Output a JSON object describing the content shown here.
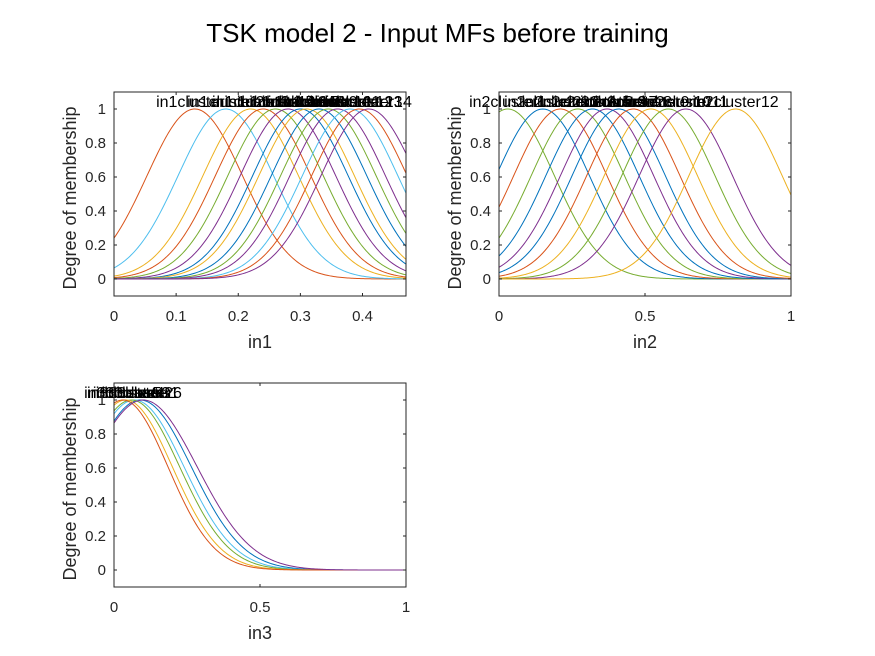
{
  "figure": {
    "title": "TSK model 2 - Input MFs before training"
  },
  "colors": [
    "#0072BD",
    "#D95319",
    "#EDB120",
    "#7E2F8E",
    "#77AC30",
    "#4DBEEE"
  ],
  "chart_data": [
    {
      "type": "line",
      "xlabel": "in1",
      "ylabel": "Degree of membership",
      "xlim": [
        0,
        0.47
      ],
      "ylim": [
        -0.1,
        1.1
      ],
      "xticks": [
        0,
        0.1,
        0.2,
        0.3,
        0.4
      ],
      "yticks": [
        0,
        0.2,
        0.4,
        0.6,
        0.8,
        1
      ],
      "sigma": 0.077,
      "series": [
        {
          "name": "in1cluster1",
          "center": 0.13,
          "color": "#D95319"
        },
        {
          "name": "in1cluster2",
          "center": 0.18,
          "color": "#4DBEEE"
        },
        {
          "name": "in1cluster3",
          "center": 0.22,
          "color": "#EDB120"
        },
        {
          "name": "in1cluster4",
          "center": 0.24,
          "color": "#D95319"
        },
        {
          "name": "in1cluster5",
          "center": 0.26,
          "color": "#77AC30"
        },
        {
          "name": "in1cluster6",
          "center": 0.28,
          "color": "#7E2F8E"
        },
        {
          "name": "in1cluster7",
          "center": 0.3,
          "color": "#0072BD"
        },
        {
          "name": "in1cluster8",
          "center": 0.31,
          "color": "#EDB120"
        },
        {
          "name": "in1cluster9",
          "center": 0.33,
          "color": "#0072BD"
        },
        {
          "name": "in1cluster10",
          "center": 0.345,
          "color": "#77AC30"
        },
        {
          "name": "in1cluster11",
          "center": 0.36,
          "color": "#7E2F8E"
        },
        {
          "name": "in1cluster12",
          "center": 0.38,
          "color": "#4DBEEE"
        },
        {
          "name": "in1cluster13",
          "center": 0.395,
          "color": "#D95319"
        },
        {
          "name": "in1cluster14",
          "center": 0.41,
          "color": "#7E2F8E"
        }
      ]
    },
    {
      "type": "line",
      "xlabel": "in2",
      "ylabel": "Degree of membership",
      "xlim": [
        0,
        1
      ],
      "ylim": [
        -0.1,
        1.1
      ],
      "xticks": [
        0,
        0.5,
        1
      ],
      "yticks": [
        0,
        0.2,
        0.4,
        0.6,
        0.8,
        1
      ],
      "sigma": 0.16,
      "series": [
        {
          "name": "in2cluster1",
          "center": 0.03,
          "color": "#77AC30"
        },
        {
          "name": "in2cluster2",
          "center": 0.15,
          "color": "#0072BD"
        },
        {
          "name": "in2cluster3",
          "center": 0.21,
          "color": "#D95319"
        },
        {
          "name": "in2cluster4",
          "center": 0.27,
          "color": "#77AC30"
        },
        {
          "name": "in2cluster5",
          "center": 0.32,
          "color": "#0072BD"
        },
        {
          "name": "in2cluster6",
          "center": 0.37,
          "color": "#7E2F8E"
        },
        {
          "name": "in2cluster7",
          "center": 0.41,
          "color": "#0072BD"
        },
        {
          "name": "in2cluster8",
          "center": 0.46,
          "color": "#D95319"
        },
        {
          "name": "in2cluster9",
          "center": 0.52,
          "color": "#EDB120"
        },
        {
          "name": "in2cluster10",
          "center": 0.58,
          "color": "#77AC30"
        },
        {
          "name": "in2cluster11",
          "center": 0.64,
          "color": "#7E2F8E"
        },
        {
          "name": "in2cluster12",
          "center": 0.81,
          "color": "#EDB120"
        }
      ]
    },
    {
      "type": "line",
      "xlabel": "in3",
      "ylabel": "Degree of membership",
      "xlim": [
        0,
        1
      ],
      "ylim": [
        -0.1,
        1.1
      ],
      "xticks": [
        0,
        0.5,
        1
      ],
      "yticks": [
        0,
        0.2,
        0.4,
        0.6,
        0.8,
        1
      ],
      "sigma": 0.16,
      "series": [
        {
          "name": "in3cluster1",
          "center": 0.09,
          "sigma": 0.175,
          "color": "#0072BD"
        },
        {
          "name": "in3cluster2",
          "center": 0.07,
          "sigma": 0.17,
          "color": "#4DBEEE"
        },
        {
          "name": "in3cluster3",
          "center": 0.06,
          "sigma": 0.165,
          "color": "#77AC30"
        },
        {
          "name": "in3cluster4",
          "center": 0.04,
          "sigma": 0.16,
          "color": "#EDB120"
        },
        {
          "name": "in3cluster5",
          "center": 0.03,
          "sigma": 0.155,
          "color": "#D95319"
        },
        {
          "name": "in3cluster6",
          "center": 0.1,
          "sigma": 0.185,
          "color": "#7E2F8E"
        }
      ]
    }
  ]
}
